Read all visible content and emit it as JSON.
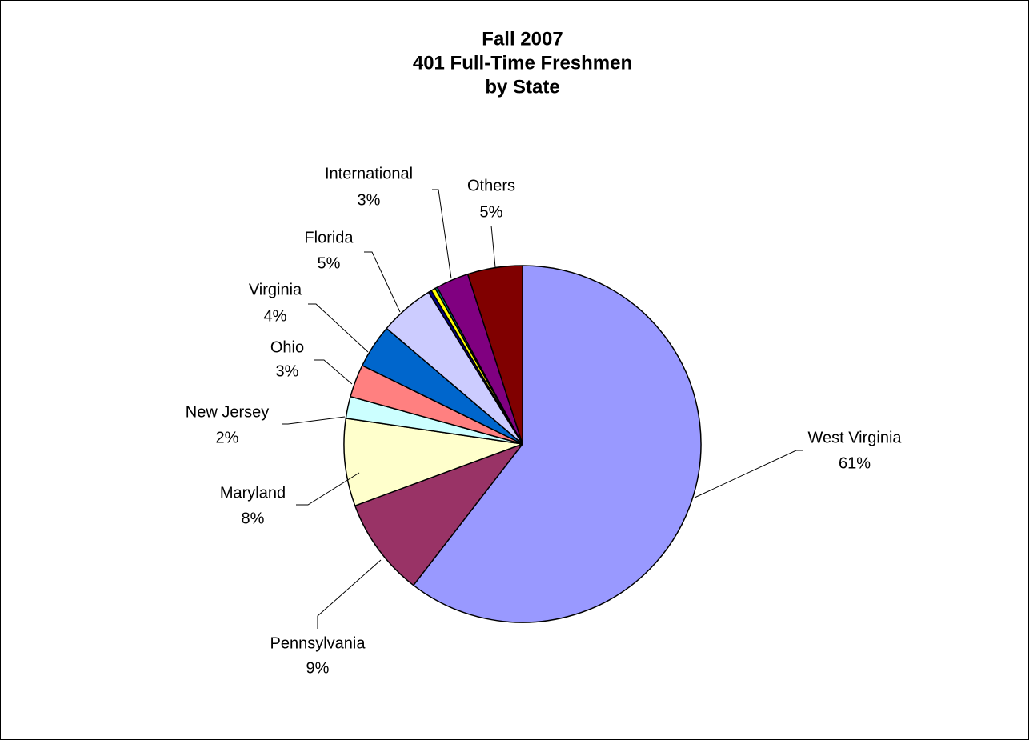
{
  "chart_data": {
    "type": "pie",
    "title": [
      "Fall 2007",
      "401 Full-Time Freshmen",
      "by State"
    ],
    "categories": [
      "West Virginia",
      "Pennsylvania",
      "Maryland",
      "New Jersey",
      "Ohio",
      "Virginia",
      "Florida",
      null,
      null,
      null,
      "International",
      "Others"
    ],
    "values": [
      61,
      9,
      8,
      2,
      3,
      4,
      5,
      0.3,
      0.4,
      0.2,
      3,
      5
    ],
    "value_labels": [
      "61%",
      "9%",
      "8%",
      "2%",
      "3%",
      "4%",
      "5%",
      null,
      null,
      null,
      "3%",
      "5%"
    ],
    "colors": [
      "#9999ff",
      "#993366",
      "#ffffcc",
      "#ccffff",
      "#ff8080",
      "#0066cc",
      "#ccccff",
      "#000080",
      "#ffff00",
      "#008080",
      "#800080",
      "#800000"
    ]
  }
}
